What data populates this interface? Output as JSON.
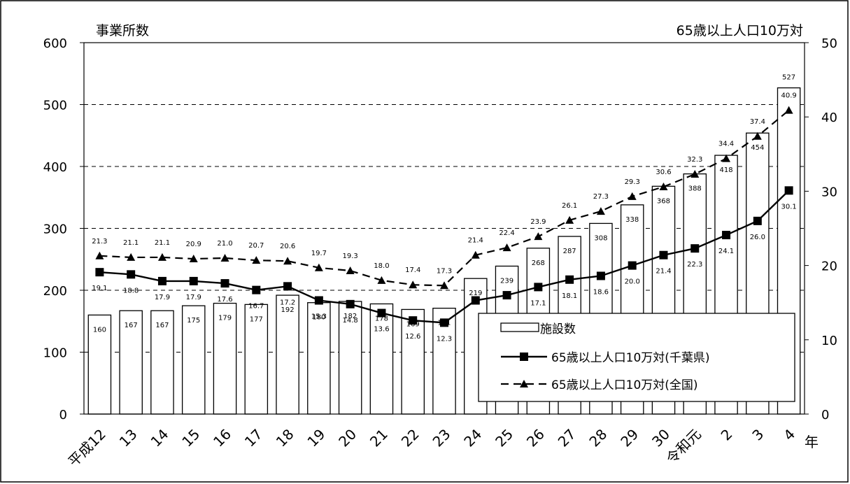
{
  "chart_data": {
    "type": "bar",
    "left_axis_title": "事業所数",
    "right_axis_title": "65歳以上人口10万対",
    "x_unit": "年",
    "categories": [
      "平成12",
      "13",
      "14",
      "15",
      "16",
      "17",
      "18",
      "19",
      "20",
      "21",
      "22",
      "23",
      "24",
      "25",
      "26",
      "27",
      "28",
      "29",
      "30",
      "令和元",
      "2",
      "3",
      "4"
    ],
    "y_left": {
      "min": 0,
      "max": 600,
      "ticks": [
        "0",
        "100",
        "200",
        "300",
        "400",
        "500",
        "600"
      ]
    },
    "y_right": {
      "min": 0,
      "max": 50,
      "ticks": [
        "0",
        "10",
        "20",
        "30",
        "40",
        "50"
      ]
    },
    "grid": "horizontal dashed",
    "legend_position": "bottom-right",
    "series": [
      {
        "name": "施設数",
        "type": "bar",
        "axis": "left",
        "values": [
          160,
          167,
          167,
          175,
          179,
          177,
          192,
          180,
          182,
          178,
          169,
          171,
          219,
          239,
          268,
          287,
          308,
          338,
          368,
          388,
          418,
          454,
          527
        ],
        "labels": [
          "160",
          "167",
          "167",
          "175",
          "179",
          "177",
          "192",
          "180",
          "182",
          "178",
          "169",
          "171",
          "219",
          "239",
          "268",
          "287",
          "308",
          "338",
          "368",
          "388",
          "418",
          "454",
          "527"
        ]
      },
      {
        "name": "65歳以上人口10万対(千葉県)",
        "type": "line",
        "axis": "right",
        "style": "solid, square markers",
        "values": [
          19.1,
          18.8,
          17.9,
          17.9,
          17.6,
          16.7,
          17.2,
          15.3,
          14.8,
          13.6,
          12.6,
          12.3,
          15.3,
          16.0,
          17.1,
          18.1,
          18.6,
          20.0,
          21.4,
          22.3,
          24.1,
          26.0,
          30.1
        ],
        "labels": [
          "19.1",
          "18.8",
          "17.9",
          "17.9",
          "17.6",
          "16.7",
          "17.2",
          "15.3",
          "14.8",
          "13.6",
          "12.6",
          "12.3",
          "",
          "",
          "17.1",
          "18.1",
          "18.6",
          "20.0",
          "21.4",
          "22.3",
          "24.1",
          "26.0",
          "30.1"
        ]
      },
      {
        "name": "65歳以上人口10万対(全国)",
        "type": "line",
        "axis": "right",
        "style": "dashed, triangle markers",
        "values": [
          21.3,
          21.1,
          21.1,
          20.9,
          21.0,
          20.7,
          20.6,
          19.7,
          19.3,
          18.0,
          17.4,
          17.3,
          21.4,
          22.4,
          23.9,
          26.1,
          27.3,
          29.3,
          30.6,
          32.3,
          34.4,
          37.4,
          40.9
        ],
        "labels": [
          "21.3",
          "21.1",
          "21.1",
          "20.9",
          "21.0",
          "20.7",
          "20.6",
          "19.7",
          "19.3",
          "18.0",
          "17.4",
          "17.3",
          "21.4",
          "22.4",
          "23.9",
          "26.1",
          "27.3",
          "29.3",
          "30.6",
          "32.3",
          "34.4",
          "37.4",
          "40.9"
        ]
      }
    ]
  }
}
